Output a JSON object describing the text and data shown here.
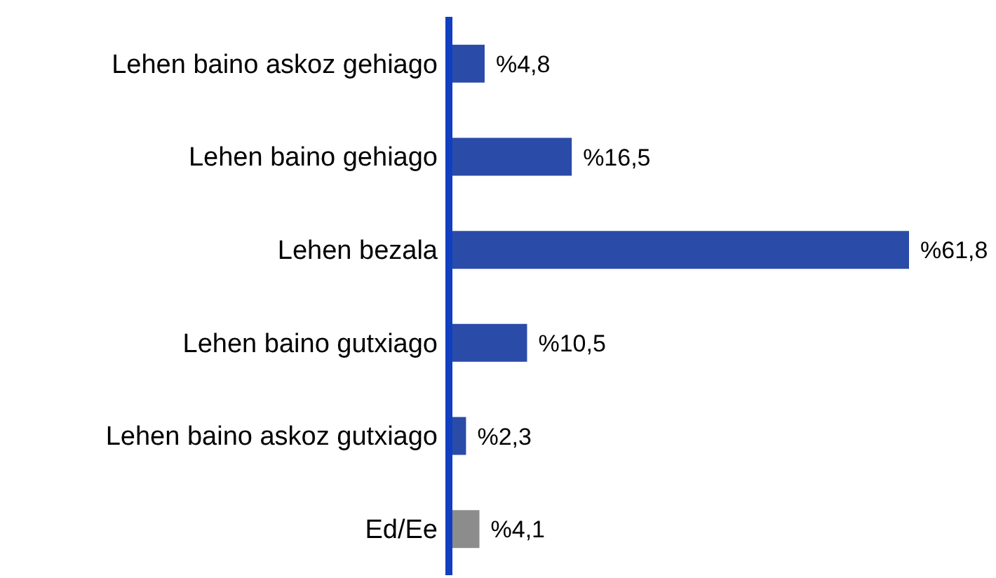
{
  "chart_data": {
    "type": "bar",
    "orientation": "horizontal",
    "categories": [
      "Lehen baino askoz gehiago",
      "Lehen baino gehiago",
      "Lehen bezala",
      "Lehen baino gutxiago",
      "Lehen baino askoz gutxiago",
      "Ed/Ee"
    ],
    "values": [
      4.8,
      16.5,
      61.8,
      10.5,
      2.3,
      4.1
    ],
    "colors": [
      "#2b4ba8",
      "#2b4ba8",
      "#2b4ba8",
      "#2b4ba8",
      "#2b4ba8",
      "#8c8c8c"
    ],
    "value_labels": [
      "%4,8",
      "%16,5",
      "%61,8",
      "%10,5",
      "%2,3",
      "%4,1"
    ],
    "grid": false,
    "legend": false
  }
}
